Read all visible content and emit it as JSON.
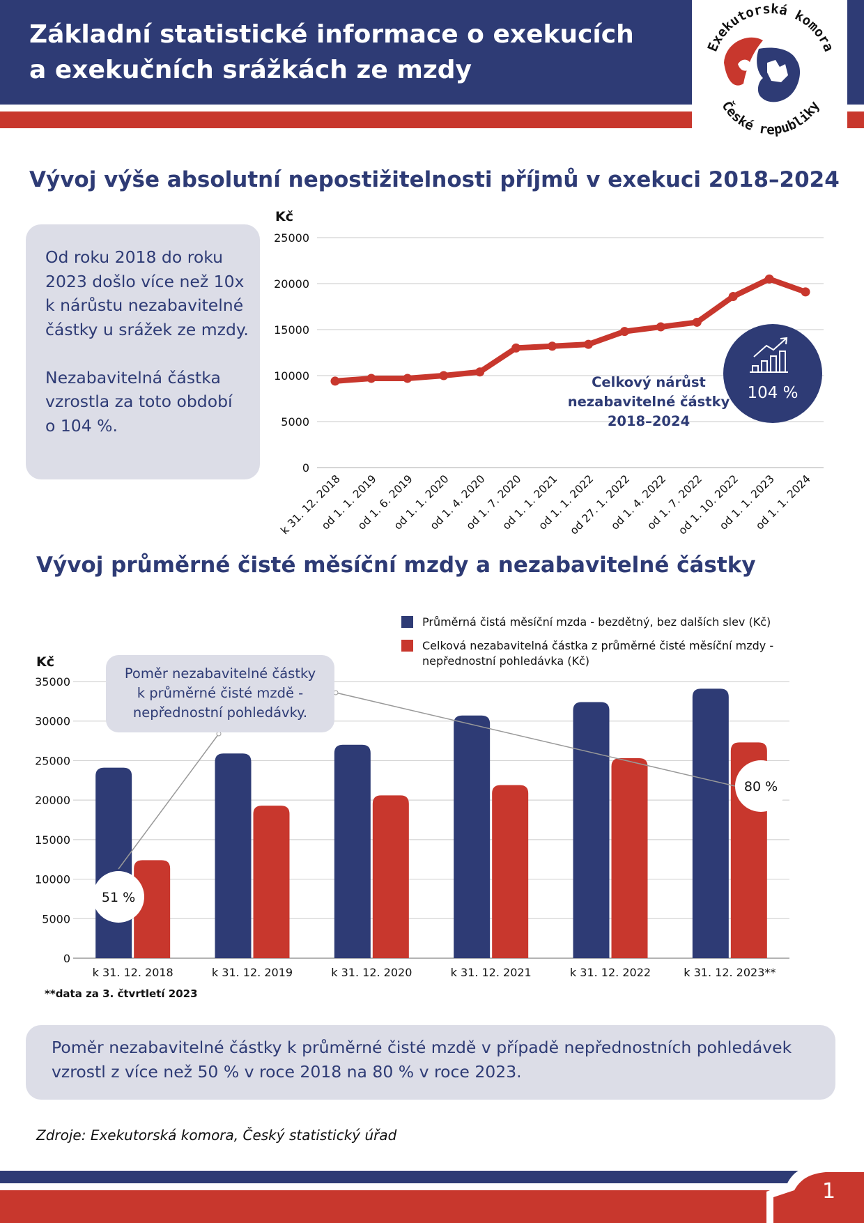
{
  "header": {
    "title_line1": "Základní statistické informace o exekucích",
    "title_line2": "a exekučních srážkách ze mzdy",
    "logo_text_top": "Exekutorská komora",
    "logo_text_bottom": "České republiky"
  },
  "section1": {
    "title": "Vývoj výše absolutní nepostižitelnosti příjmů v exekuci 2018–2024",
    "info_lines": [
      "Od roku 2018 do roku",
      "2023 došlo více než 10x",
      "k nárůstu nezabavitelné",
      "částky u srážek ze mzdy.",
      "",
      "Nezabavitelná částka",
      "vzrostla za toto období",
      "o 104 %."
    ],
    "growth_label_lines": [
      "Celkový nárůst",
      "nezabavitelné částky",
      "2018–2024"
    ],
    "growth_badge": "104 %"
  },
  "section2": {
    "title": "Vývoj průměrné čisté měsíční mzdy a nezabavitelné částky",
    "ratio_box_lines": [
      "Poměr nezabavitelné částky",
      "k průměrné čisté mzdě -",
      "nepřednostní pohledávky."
    ],
    "badge_2018": "51 %",
    "badge_2023": "80 %",
    "footnote": "**data za 3. čtvrtletí 2023"
  },
  "summary_lines": [
    "Poměr nezabavitelné částky k průměrné čisté mzdě v případě nepřednostních pohledávek",
    "vzrostl z více než 50 % v roce 2018 na 80 % v roce 2023."
  ],
  "source": "Zdroje: Exekutorská komora, Český statistický úřad",
  "page_number": "1",
  "colors": {
    "navy": "#2e3b75",
    "red": "#c8372d",
    "box": "#dcdde7"
  },
  "chart_data": [
    {
      "type": "line",
      "ylabel": "Kč",
      "ylim": [
        0,
        25000
      ],
      "yticks": [
        0,
        5000,
        10000,
        15000,
        20000,
        25000
      ],
      "grid": true,
      "categories": [
        "k 31. 12. 2018",
        "od 1. 1. 2019",
        "od 1. 6. 2019",
        "od 1. 1. 2020",
        "od 1. 4. 2020",
        "od 1. 7. 2020",
        "od 1. 1. 2021",
        "od 1. 1. 2022",
        "od 27. 1. 2022",
        "od 1. 4. 2022",
        "od 1. 7. 2022",
        "od 1. 10. 2022",
        "od 1. 1. 2023",
        "od 1. 1. 2024"
      ],
      "values": [
        9400,
        9700,
        9700,
        10000,
        10400,
        13000,
        13200,
        13400,
        14800,
        15300,
        15800,
        18600,
        20500,
        19100
      ]
    },
    {
      "type": "bar",
      "ylabel": "Kč",
      "ylim": [
        0,
        35000
      ],
      "yticks": [
        0,
        5000,
        10000,
        15000,
        20000,
        25000,
        30000,
        35000
      ],
      "grid": true,
      "legend_position": "top-right",
      "categories": [
        "k 31. 12. 2018",
        "k 31. 12. 2019",
        "k 31. 12. 2020",
        "k 31. 12. 2021",
        "k 31. 12. 2022",
        "k 31. 12. 2023**"
      ],
      "series": [
        {
          "name": "Průměrná čistá měsíční mzda - bezdětný, bez dalších slev (Kč)",
          "color": "#2e3b75",
          "values": [
            24100,
            25900,
            27000,
            30700,
            32400,
            34100
          ]
        },
        {
          "name": "Celková nezabavitelná částka z průměrné čisté měsíční mzdy - nepřednostní pohledávka (Kč)",
          "color": "#c8372d",
          "values": [
            12400,
            19300,
            20600,
            21900,
            25300,
            27300
          ]
        }
      ]
    }
  ]
}
